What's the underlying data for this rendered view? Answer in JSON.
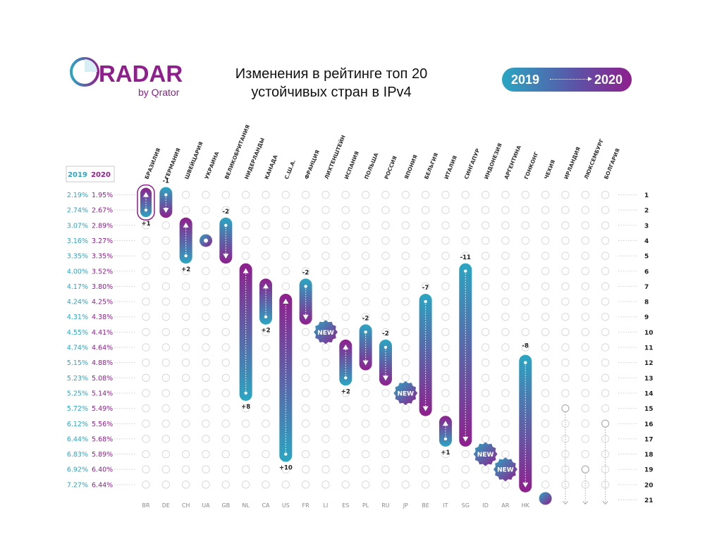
{
  "header": {
    "logo_word": "RADAR",
    "logo_sub": "by Qrator",
    "title_line1": "Изменения в рейтинге топ 20",
    "title_line2": "устойчивых стран в IPv4",
    "legend_from": "2019",
    "legend_to": "2020"
  },
  "colors": {
    "teal": "#2aa6c2",
    "purple": "#8f1f8d",
    "dot": "#d9d9d9",
    "grey_text": "#888888"
  },
  "chart_data": {
    "type": "table",
    "title": "Изменения в рейтинге топ 20 устойчивых стран в IPv4",
    "year_headers": [
      "2019",
      "2020"
    ],
    "rank_labels": [
      "1",
      "2",
      "3",
      "4",
      "5",
      "6",
      "7",
      "8",
      "9",
      "10",
      "11",
      "12",
      "13",
      "14",
      "15",
      "16",
      "17",
      "18",
      "19",
      "20",
      "21"
    ],
    "scores_2019": [
      "2.19%",
      "2.74%",
      "3.07%",
      "3.16%",
      "3.35%",
      "4.00%",
      "4.17%",
      "4.24%",
      "4.31%",
      "4.55%",
      "4.74%",
      "5.15%",
      "5.23%",
      "5.25%",
      "5.72%",
      "6.12%",
      "6.44%",
      "6.83%",
      "6.92%",
      "7.27%"
    ],
    "scores_2020": [
      "1.95%",
      "2.67%",
      "2.89%",
      "3.27%",
      "3.35%",
      "3.52%",
      "3.80%",
      "4.25%",
      "4.38%",
      "4.41%",
      "4.64%",
      "4.88%",
      "5.08%",
      "5.14%",
      "5.49%",
      "5.56%",
      "5.68%",
      "5.89%",
      "6.40%",
      "6.44%"
    ],
    "countries": [
      {
        "name": "БРАЗИЛИЯ",
        "code": "BR",
        "from": 2,
        "to": 1,
        "change": "+1",
        "kind": "up"
      },
      {
        "name": "ГЕРМАНИЯ",
        "code": "DE",
        "from": 1,
        "to": 2,
        "change": "-1",
        "kind": "down"
      },
      {
        "name": "ШВЕЙЦАРИЯ",
        "code": "CH",
        "from": 5,
        "to": 3,
        "change": "+2",
        "kind": "up"
      },
      {
        "name": "УКРАИНА",
        "code": "UA",
        "from": 4,
        "to": 4,
        "change": "",
        "kind": "same"
      },
      {
        "name": "ВЕЛИКОБРИТАНИЯ",
        "code": "GB",
        "from": 3,
        "to": 5,
        "change": "-2",
        "kind": "down"
      },
      {
        "name": "НИДЕРЛАНДЫ",
        "code": "NL",
        "from": 14,
        "to": 6,
        "change": "+8",
        "kind": "up"
      },
      {
        "name": "КАНАДА",
        "code": "CA",
        "from": 9,
        "to": 7,
        "change": "+2",
        "kind": "up"
      },
      {
        "name": "С.Ш.А.",
        "code": "US",
        "from": 18,
        "to": 8,
        "change": "+10",
        "kind": "up"
      },
      {
        "name": "ФРАНЦИЯ",
        "code": "FR",
        "from": 7,
        "to": 9,
        "change": "-2",
        "kind": "down"
      },
      {
        "name": "ЛИХТЕНШТЕЙН",
        "code": "LI",
        "from": null,
        "to": 10,
        "change": "NEW",
        "kind": "new"
      },
      {
        "name": "ИСПАНИЯ",
        "code": "ES",
        "from": 13,
        "to": 11,
        "change": "+2",
        "kind": "up"
      },
      {
        "name": "ПОЛЬША",
        "code": "PL",
        "from": 10,
        "to": 12,
        "change": "-2",
        "kind": "down"
      },
      {
        "name": "РОССИЯ",
        "code": "RU",
        "from": 11,
        "to": 13,
        "change": "-2",
        "kind": "down"
      },
      {
        "name": "ЯПОНИЯ",
        "code": "JP",
        "from": null,
        "to": 14,
        "change": "NEW",
        "kind": "new"
      },
      {
        "name": "БЕЛЬГИЯ",
        "code": "BE",
        "from": 8,
        "to": 15,
        "change": "-7",
        "kind": "down"
      },
      {
        "name": "ИТАЛИЯ",
        "code": "IT",
        "from": 17,
        "to": 16,
        "change": "+1",
        "kind": "up"
      },
      {
        "name": "СИНГАПУР",
        "code": "SG",
        "from": 6,
        "to": 17,
        "change": "-11",
        "kind": "down"
      },
      {
        "name": "ИНДОНЕЗИЯ",
        "code": "ID",
        "from": null,
        "to": 18,
        "change": "NEW",
        "kind": "new"
      },
      {
        "name": "АРГЕНТИНА",
        "code": "AR",
        "from": null,
        "to": 19,
        "change": "NEW",
        "kind": "new"
      },
      {
        "name": "ГОНКОНГ",
        "code": "HK",
        "from": 12,
        "to": 20,
        "change": "-8",
        "kind": "down"
      },
      {
        "name": "ЧЕХИЯ",
        "code": "",
        "from": 20,
        "to": 21,
        "change": "",
        "kind": "out"
      },
      {
        "name": "ИРЛАНДИЯ",
        "code": "",
        "from": 15,
        "to": 21,
        "change": "",
        "kind": "out"
      },
      {
        "name": "ЛЮКСЕМБУРГ",
        "code": "",
        "from": 19,
        "to": 21,
        "change": "",
        "kind": "out"
      },
      {
        "name": "БОЛГАРИЯ",
        "code": "",
        "from": 16,
        "to": 21,
        "change": "",
        "kind": "out"
      }
    ]
  }
}
